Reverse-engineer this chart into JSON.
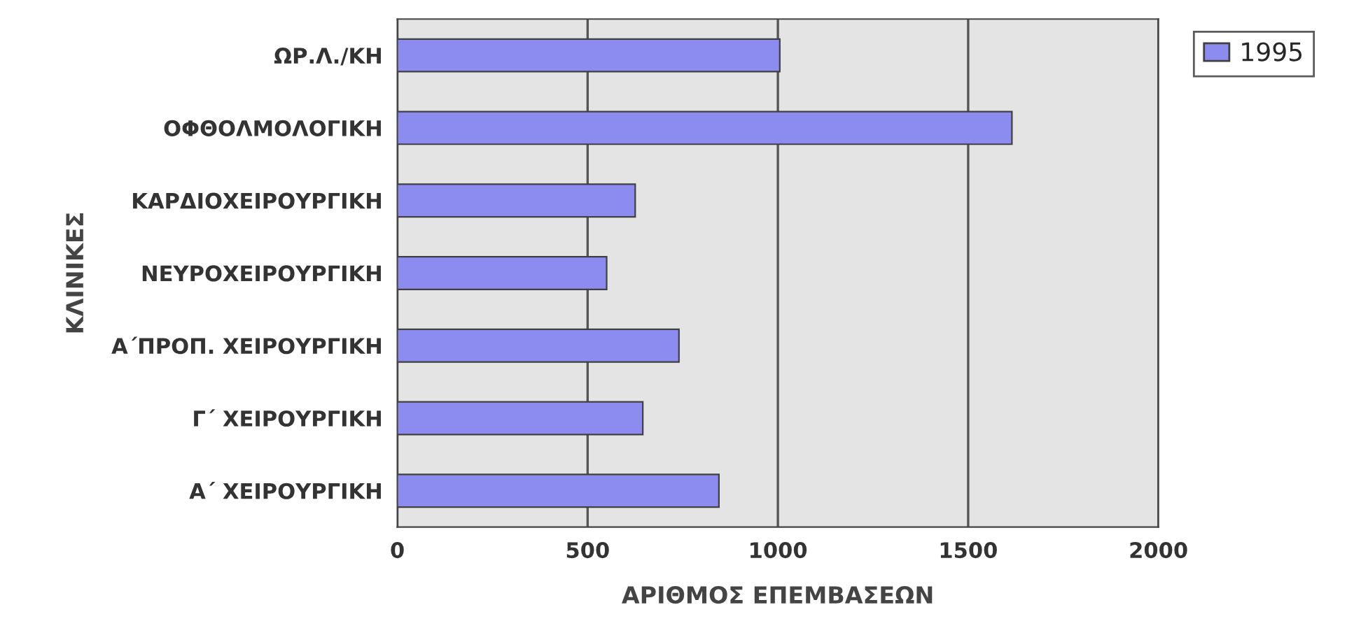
{
  "chart_data": {
    "type": "bar",
    "orientation": "horizontal",
    "xlabel": "ΑΡΙΘΜΟΣ ΕΠΕΜΒΑΣΕΩΝ",
    "ylabel": "ΚΛΙΝΙΚΕΣ",
    "categories": [
      "ΩΡ.Λ./ΚΗ",
      "ΟΦΘΟΛΜΟΛΟΓΙΚΗ",
      "ΚΑΡΔΙΟΧΕΙΡΟΥΡΓΙΚΗ",
      "ΝΕΥΡΟΧΕΙΡΟΥΡΓΙΚΗ",
      "Α΄ΠΡΟΠ. ΧΕΙΡΟΥΡΓΙΚΗ",
      "Γ΄ ΧΕΙΡΟΥΡΓΙΚΗ",
      "Α΄ ΧΕΙΡΟΥΡΓΙΚΗ"
    ],
    "series": [
      {
        "name": "1995",
        "color": "#8c8cf0",
        "values": [
          1005,
          1615,
          625,
          550,
          740,
          645,
          845
        ]
      }
    ],
    "xlim": [
      0,
      2000
    ],
    "xticks": [
      0,
      500,
      1000,
      1500,
      2000
    ],
    "grid": "x",
    "legend": "top right"
  }
}
